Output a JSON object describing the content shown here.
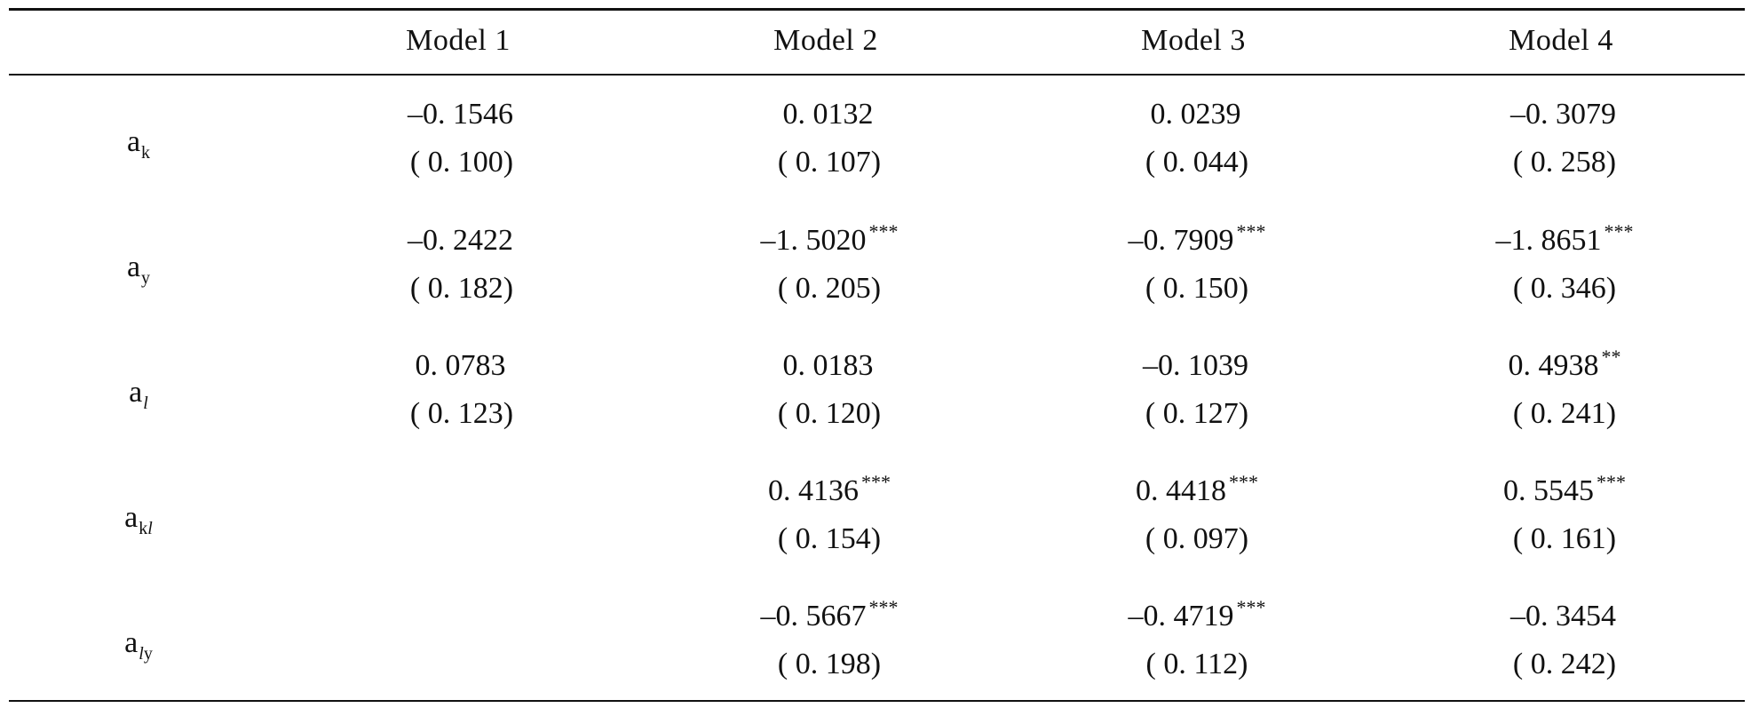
{
  "table": {
    "columns": [
      "Model 1",
      "Model 2",
      "Model 3",
      "Model 4"
    ],
    "rows": [
      {
        "label": "a",
        "sub_plain": "k",
        "sub_italic": "",
        "sub_after": "",
        "cells": [
          {
            "coef": "–0. 1546",
            "stars": "",
            "se": "( 0. 100)"
          },
          {
            "coef": "0. 0132",
            "stars": "",
            "se": "( 0. 107)"
          },
          {
            "coef": "0. 0239",
            "stars": "",
            "se": "( 0. 044)"
          },
          {
            "coef": "–0. 3079",
            "stars": "",
            "se": "( 0. 258)"
          }
        ]
      },
      {
        "label": "a",
        "sub_plain": "y",
        "sub_italic": "",
        "sub_after": "",
        "cells": [
          {
            "coef": "–0. 2422",
            "stars": "",
            "se": "( 0. 182)"
          },
          {
            "coef": "–1. 5020",
            "stars": "***",
            "se": "( 0. 205)"
          },
          {
            "coef": "–0. 7909",
            "stars": "***",
            "se": "( 0. 150)"
          },
          {
            "coef": "–1. 8651",
            "stars": "***",
            "se": "( 0. 346)"
          }
        ]
      },
      {
        "label": "a",
        "sub_plain": "",
        "sub_italic": "l",
        "sub_after": "",
        "cells": [
          {
            "coef": "0. 0783",
            "stars": "",
            "se": "( 0. 123)"
          },
          {
            "coef": "0. 0183",
            "stars": "",
            "se": "( 0. 120)"
          },
          {
            "coef": "–0. 1039",
            "stars": "",
            "se": "( 0. 127)"
          },
          {
            "coef": "0. 4938",
            "stars": "**",
            "se": "( 0. 241)"
          }
        ]
      },
      {
        "label": "a",
        "sub_plain": "k",
        "sub_italic": "l",
        "sub_after": "",
        "cells": [
          {
            "coef": "",
            "stars": "",
            "se": ""
          },
          {
            "coef": "0. 4136",
            "stars": "***",
            "se": "( 0. 154)"
          },
          {
            "coef": "0. 4418",
            "stars": "***",
            "se": "( 0. 097)"
          },
          {
            "coef": "0. 5545",
            "stars": "***",
            "se": "( 0. 161)"
          }
        ]
      },
      {
        "label": "a",
        "sub_plain": "",
        "sub_italic": "l",
        "sub_after": "y",
        "cells": [
          {
            "coef": "",
            "stars": "",
            "se": ""
          },
          {
            "coef": "–0. 5667",
            "stars": "***",
            "se": "( 0. 198)"
          },
          {
            "coef": "–0. 4719",
            "stars": "***",
            "se": "( 0. 112)"
          },
          {
            "coef": "–0. 3454",
            "stars": "",
            "se": "( 0. 242)"
          }
        ]
      }
    ]
  }
}
